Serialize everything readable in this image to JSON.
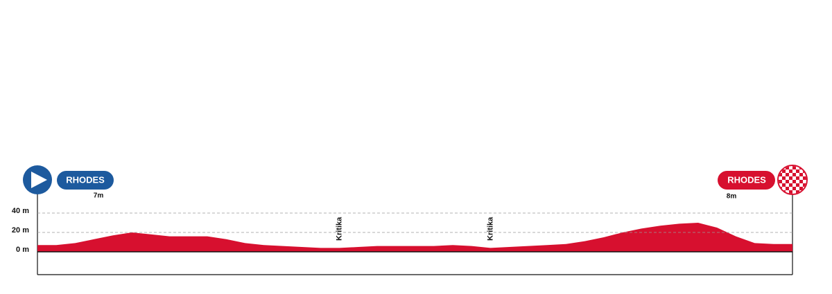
{
  "chart_data": {
    "type": "area",
    "categories": [
      null,
      null,
      null,
      null,
      null,
      null,
      null,
      null,
      null,
      null,
      null,
      null,
      null,
      null,
      null,
      null,
      "Kritika",
      null,
      null,
      null,
      null,
      null,
      null,
      null,
      "Kritika",
      null,
      null,
      null,
      null,
      null,
      null,
      null,
      null,
      null,
      null,
      null,
      null,
      null,
      null,
      null,
      null
    ],
    "values": [
      7,
      7,
      9,
      13,
      17,
      20,
      18,
      16,
      16,
      16,
      13,
      9,
      7,
      6,
      5,
      4,
      4,
      5,
      6,
      6,
      6,
      6,
      7,
      6,
      4,
      5,
      6,
      7,
      8,
      11,
      15,
      20,
      24,
      27,
      29,
      30,
      25,
      16,
      9,
      8,
      8
    ],
    "color": "#d7102f",
    "ylim": [
      0,
      40
    ],
    "yticks": [
      {
        "value": 0,
        "label": "0 m"
      },
      {
        "value": 20,
        "label": "20 m"
      },
      {
        "value": 40,
        "label": "40 m"
      }
    ],
    "grid": true,
    "start": {
      "label": "RHODES",
      "elevation_label": "7m",
      "color": "#1d5a9e"
    },
    "finish": {
      "label": "RHODES",
      "elevation_label": "8m",
      "color": "#d7102f"
    }
  }
}
